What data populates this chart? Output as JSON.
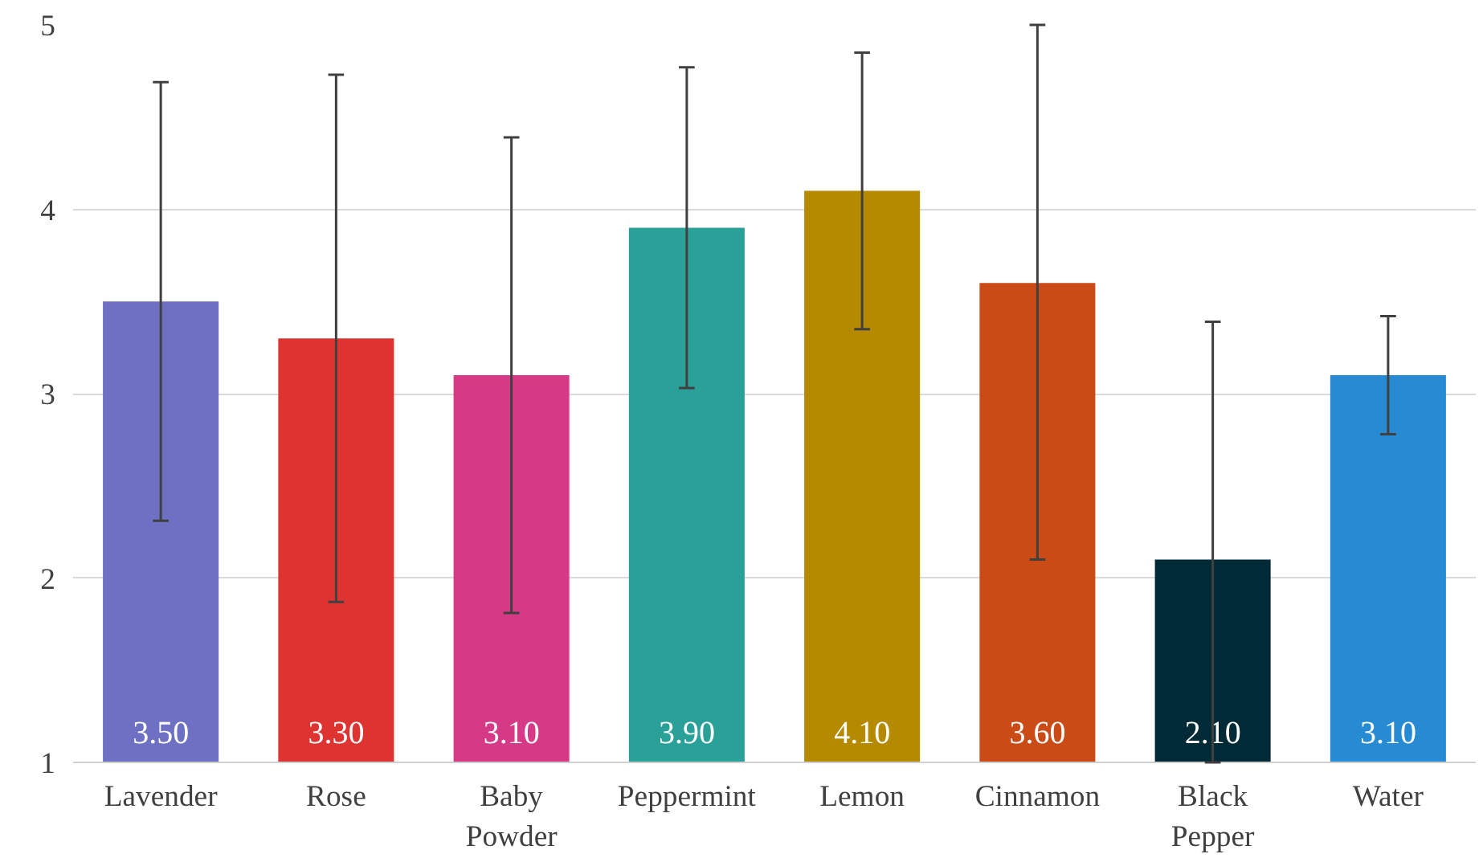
{
  "chart_data": {
    "type": "bar",
    "categories": [
      "Lavender",
      "Rose",
      "Baby Powder",
      "Peppermint",
      "Lemon",
      "Cinnamon",
      "Black Pepper",
      "Water"
    ],
    "values": [
      3.5,
      3.3,
      3.1,
      3.9,
      4.1,
      3.6,
      2.1,
      3.1
    ],
    "colors": [
      "#6e70c4",
      "#de3431",
      "#d63a87",
      "#2aa198",
      "#b58900",
      "#cb4b16",
      "#002b36",
      "#268bd2"
    ],
    "errors": [
      1.19,
      [
        1.87,
        4.73
      ],
      1.29,
      0.87,
      0.75,
      [
        2.1,
        5.0
      ],
      [
        1.0,
        3.39
      ],
      0.32
    ],
    "value_labels": [
      "3.50",
      "3.30",
      "3.10",
      "3.90",
      "4.10",
      "3.60",
      "2.10",
      "3.10"
    ],
    "ylim": [
      1,
      5
    ],
    "yticks": [
      1,
      2,
      3,
      4,
      5
    ],
    "grid": "y"
  }
}
